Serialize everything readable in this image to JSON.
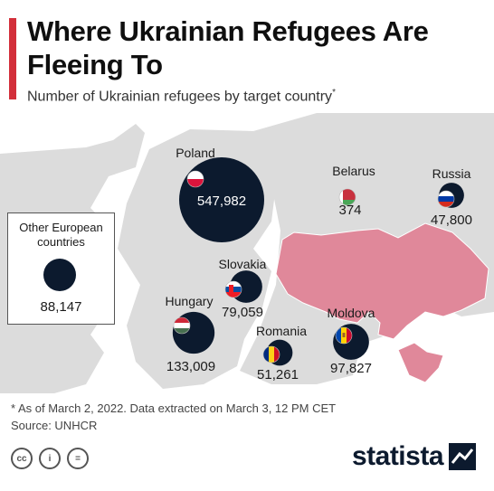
{
  "header": {
    "title": "Where Ukrainian Refugees Are Fleeing To",
    "subtitle": "Number of Ukrainian refugees by target country",
    "subtitle_mark": "*"
  },
  "colors": {
    "accent": "#d32f3a",
    "bubble": "#0c1a2e",
    "ukraine": "#e0889a",
    "land": "#dcdcdc",
    "water": "#ffffff"
  },
  "chart_data": {
    "type": "bubble-map",
    "title": "Where Ukrainian Refugees Are Fleeing To",
    "subtitle": "Number of Ukrainian refugees by target country",
    "series": [
      {
        "name": "Poland",
        "value": 547982,
        "label": "547,982",
        "flag": "poland-flag"
      },
      {
        "name": "Hungary",
        "value": 133009,
        "label": "133,009",
        "flag": "hungary-flag"
      },
      {
        "name": "Moldova",
        "value": 97827,
        "label": "97,827",
        "flag": "moldova-flag"
      },
      {
        "name": "Slovakia",
        "value": 79059,
        "label": "79,059",
        "flag": "slovakia-flag"
      },
      {
        "name": "Romania",
        "value": 51261,
        "label": "51,261",
        "flag": "romania-flag"
      },
      {
        "name": "Russia",
        "value": 47800,
        "label": "47,800",
        "flag": "russia-flag"
      },
      {
        "name": "Belarus",
        "value": 374,
        "label": "374",
        "flag": "belarus-flag"
      }
    ],
    "other": {
      "name": "Other European countries",
      "value": 88147,
      "label": "88,147"
    }
  },
  "legend": {
    "label": "Other European countries",
    "value": "88,147"
  },
  "footer": {
    "note": "* As of March 2, 2022. Data extracted on March 3, 12 PM CET",
    "source": "Source: UNHCR",
    "license_icons": [
      "cc-icon",
      "by-icon",
      "nd-icon"
    ],
    "license_glyphs": [
      "cc",
      "i",
      "="
    ],
    "brand": "statista"
  }
}
